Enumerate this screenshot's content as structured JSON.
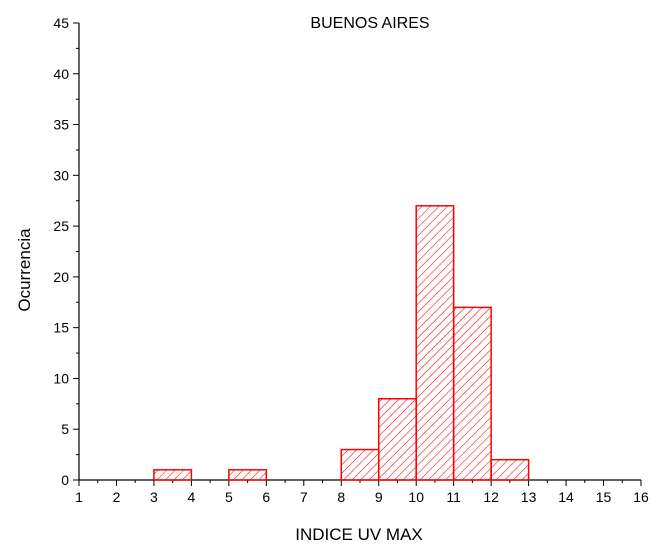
{
  "chart_data": {
    "type": "bar",
    "title": "BUENOS AIRES",
    "xlabel": "INDICE UV MAX",
    "ylabel": "Ocurrencia",
    "xlim": [
      1,
      16
    ],
    "ylim": [
      0,
      45
    ],
    "x_ticks": [
      "1",
      "2",
      "3",
      "4",
      "5",
      "6",
      "7",
      "8",
      "9",
      "10",
      "11",
      "12",
      "13",
      "14",
      "15",
      "16"
    ],
    "y_ticks": [
      "0",
      "5",
      "10",
      "15",
      "20",
      "25",
      "30",
      "35",
      "40",
      "45"
    ],
    "bins": [
      {
        "from": 3,
        "to": 4,
        "count": 1
      },
      {
        "from": 5,
        "to": 6,
        "count": 1
      },
      {
        "from": 8,
        "to": 9,
        "count": 3
      },
      {
        "from": 9,
        "to": 10,
        "count": 8
      },
      {
        "from": 10,
        "to": 11,
        "count": 27
      },
      {
        "from": 11,
        "to": 12,
        "count": 17
      },
      {
        "from": 12,
        "to": 13,
        "count": 2
      }
    ],
    "bar_color": "#ff0000",
    "hatch": "diagonal",
    "grid": false,
    "legend": "none"
  }
}
